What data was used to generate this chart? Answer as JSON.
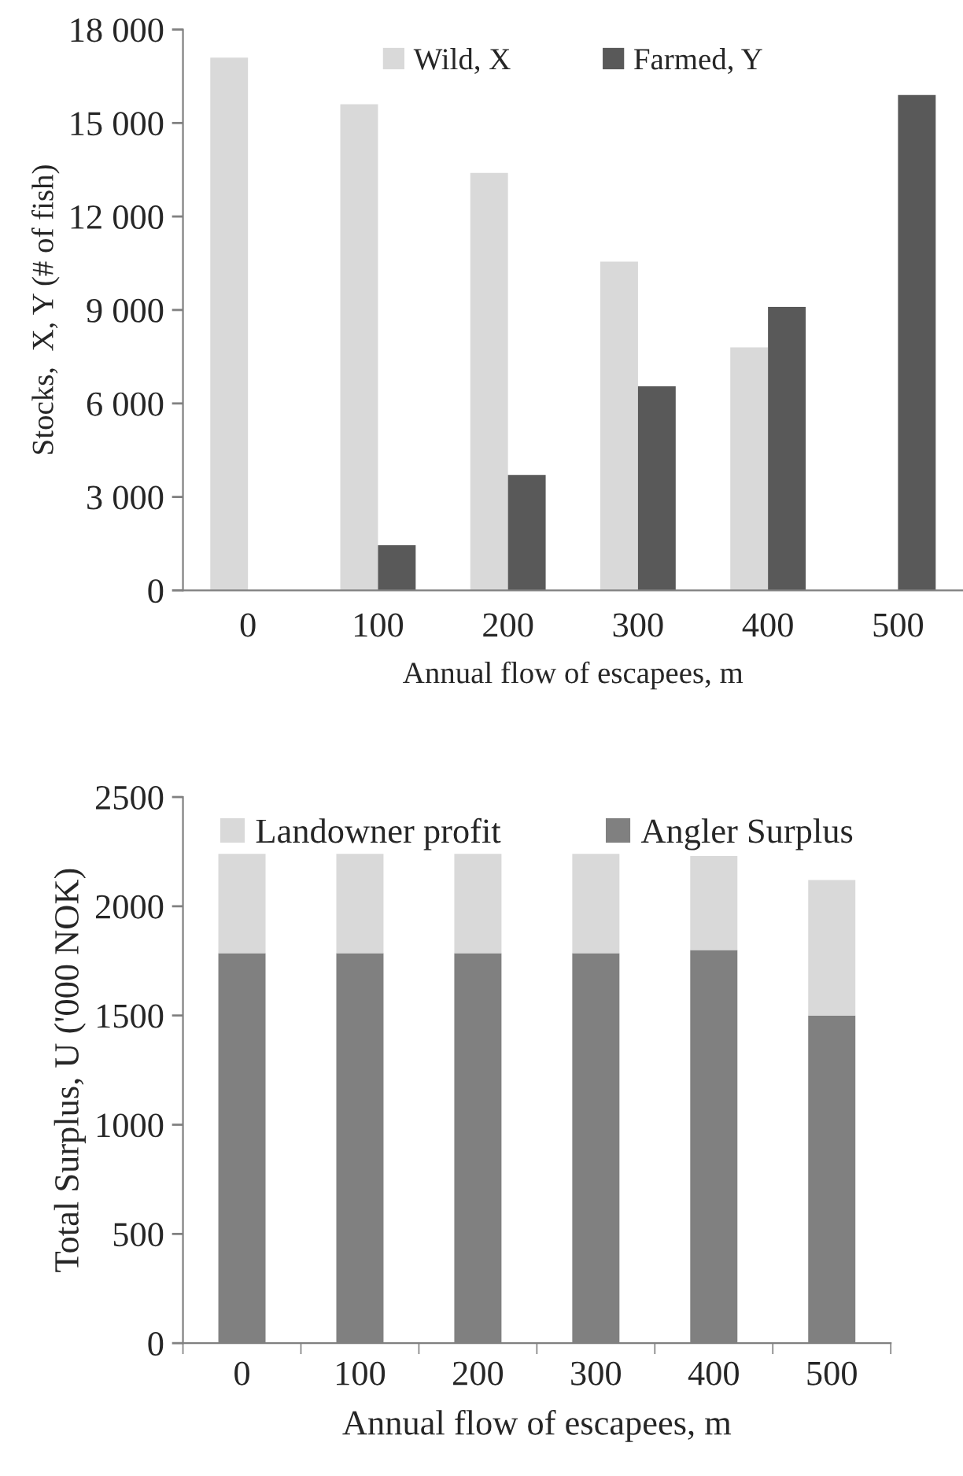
{
  "chart_data": [
    {
      "type": "bar",
      "xlabel": "Annual flow of escapees, m",
      "ylabel": "Stocks,  X, Y (# of fish)",
      "categories": [
        "0",
        "100",
        "200",
        "300",
        "400",
        "500"
      ],
      "ylim": [
        0,
        18000
      ],
      "yticks": [
        0,
        {
          "value": 3000,
          "label": "3 000"
        },
        {
          "value": 6000,
          "label": "6 000"
        },
        {
          "value": 9000,
          "label": "9 000"
        },
        {
          "value": 12000,
          "label": "12 000"
        },
        {
          "value": 15000,
          "label": "15 000"
        },
        {
          "value": 18000,
          "label": "18 000"
        }
      ],
      "series": [
        {
          "name": "Wild, X",
          "color": "#d9d9d9",
          "values": [
            17100,
            15600,
            13400,
            10550,
            7800,
            null
          ]
        },
        {
          "name": "Farmed, Y",
          "color": "#595959",
          "values": [
            null,
            1450,
            3700,
            6550,
            9100,
            15900
          ]
        }
      ],
      "legend": "top",
      "grid": false
    },
    {
      "type": "bar",
      "stacked": true,
      "xlabel": "Annual flow of escapees, m",
      "ylabel": "Total Surplus, U ('000 NOK)",
      "categories": [
        "0",
        "100",
        "200",
        "300",
        "400",
        "500"
      ],
      "ylim": [
        0,
        2500
      ],
      "yticks": [
        0,
        500,
        1000,
        1500,
        2000,
        2500
      ],
      "series": [
        {
          "name": "Angler Surplus",
          "color": "#808080",
          "values": [
            1785,
            1785,
            1785,
            1785,
            1800,
            1500
          ]
        },
        {
          "name": "Landowner profit",
          "color": "#d9d9d9",
          "values": [
            455,
            455,
            455,
            455,
            430,
            620
          ]
        }
      ],
      "legend": "top",
      "grid": false
    }
  ]
}
